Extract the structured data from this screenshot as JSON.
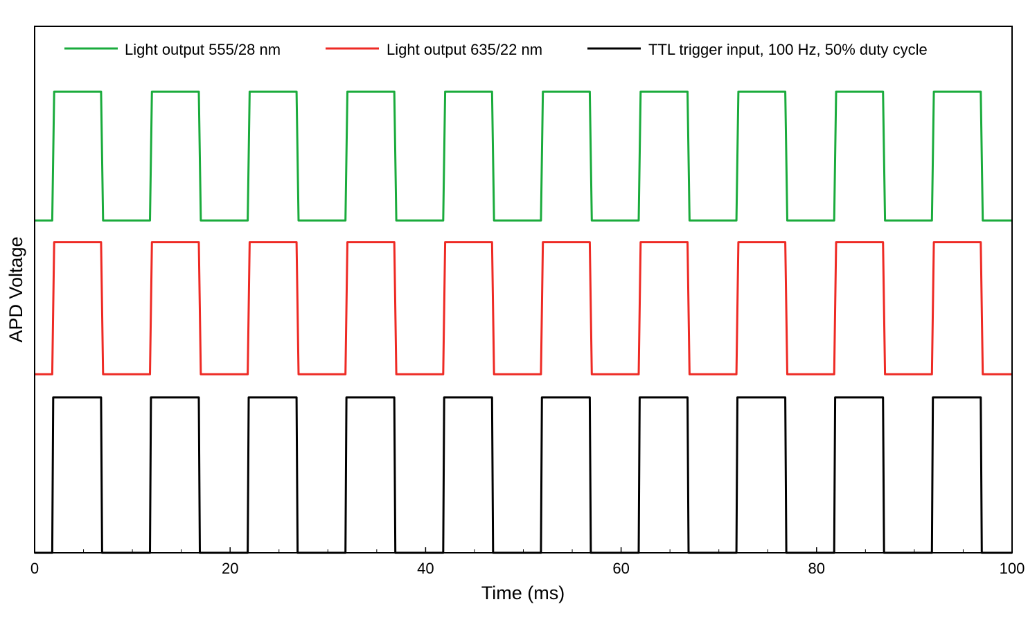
{
  "chart_data": {
    "type": "line",
    "title": "",
    "xlabel": "Time (ms)",
    "ylabel": "APD Voltage",
    "xlim": [
      0,
      100
    ],
    "ylim": [
      0,
      3.39
    ],
    "xticks": [
      0,
      20,
      40,
      60,
      80,
      100
    ],
    "xtick_labels": [
      "0",
      "20",
      "40",
      "60",
      "80",
      "100"
    ],
    "x_minor_ticks": [
      5,
      10,
      15,
      25,
      30,
      35,
      45,
      50,
      55,
      65,
      70,
      75,
      85,
      90,
      95
    ],
    "y_tick_labels_shown": false,
    "grid": false,
    "legend_position": "top",
    "series": [
      {
        "name": "Light output 555/28 nm",
        "color": "#1aab3c",
        "x": [
          0,
          1.8,
          2.0,
          6.8,
          7.0,
          11.8,
          12.0,
          16.8,
          17.0,
          21.8,
          22.0,
          26.8,
          27.0,
          31.8,
          32.0,
          36.8,
          37.0,
          41.8,
          42.0,
          46.8,
          47.0,
          51.8,
          52.0,
          56.8,
          57.0,
          61.8,
          62.0,
          66.8,
          67.0,
          71.8,
          72.0,
          76.8,
          77.0,
          81.8,
          82.0,
          86.8,
          87.0,
          91.8,
          92.0,
          96.8,
          97.0,
          100
        ],
        "y": [
          2.14,
          2.14,
          2.97,
          2.97,
          2.14,
          2.14,
          2.97,
          2.97,
          2.14,
          2.14,
          2.97,
          2.97,
          2.14,
          2.14,
          2.97,
          2.97,
          2.14,
          2.14,
          2.97,
          2.97,
          2.14,
          2.14,
          2.97,
          2.97,
          2.14,
          2.14,
          2.97,
          2.97,
          2.14,
          2.14,
          2.97,
          2.97,
          2.14,
          2.14,
          2.97,
          2.97,
          2.14,
          2.14,
          2.97,
          2.97,
          2.14,
          2.14
        ]
      },
      {
        "name": "Light output 635/22 nm",
        "color": "#ee2a24",
        "x": [
          0,
          1.8,
          2.0,
          6.8,
          7.0,
          11.8,
          12.0,
          16.8,
          17.0,
          21.8,
          22.0,
          26.8,
          27.0,
          31.8,
          32.0,
          36.8,
          37.0,
          41.8,
          42.0,
          46.8,
          47.0,
          51.8,
          52.0,
          56.8,
          57.0,
          61.8,
          62.0,
          66.8,
          67.0,
          71.8,
          72.0,
          76.8,
          77.0,
          81.8,
          82.0,
          86.8,
          87.0,
          91.8,
          92.0,
          96.8,
          97.0,
          100
        ],
        "y": [
          1.15,
          1.15,
          2.0,
          2.0,
          1.15,
          1.15,
          2.0,
          2.0,
          1.15,
          1.15,
          2.0,
          2.0,
          1.15,
          1.15,
          2.0,
          2.0,
          1.15,
          1.15,
          2.0,
          2.0,
          1.15,
          1.15,
          2.0,
          2.0,
          1.15,
          1.15,
          2.0,
          2.0,
          1.15,
          1.15,
          2.0,
          2.0,
          1.15,
          1.15,
          2.0,
          2.0,
          1.15,
          1.15,
          2.0,
          2.0,
          1.15,
          1.15
        ]
      },
      {
        "name": "TTL trigger input, 100 Hz, 50% duty cycle",
        "color": "#000000",
        "x": [
          0,
          1.8,
          1.9,
          6.8,
          6.9,
          11.8,
          11.9,
          16.8,
          16.9,
          21.8,
          21.9,
          26.8,
          26.9,
          31.8,
          31.9,
          36.8,
          36.9,
          41.8,
          41.9,
          46.8,
          46.9,
          51.8,
          51.9,
          56.8,
          56.9,
          61.8,
          61.9,
          66.8,
          66.9,
          71.8,
          71.9,
          76.8,
          76.9,
          81.8,
          81.9,
          86.8,
          86.9,
          91.8,
          91.9,
          96.8,
          96.9,
          100
        ],
        "y": [
          0,
          0,
          1,
          1,
          0,
          0,
          1,
          1,
          0,
          0,
          1,
          1,
          0,
          0,
          1,
          1,
          0,
          0,
          1,
          1,
          0,
          0,
          1,
          1,
          0,
          0,
          1,
          1,
          0,
          0,
          1,
          1,
          0,
          0,
          1,
          1,
          0,
          0,
          1,
          1,
          0,
          0
        ]
      }
    ]
  }
}
